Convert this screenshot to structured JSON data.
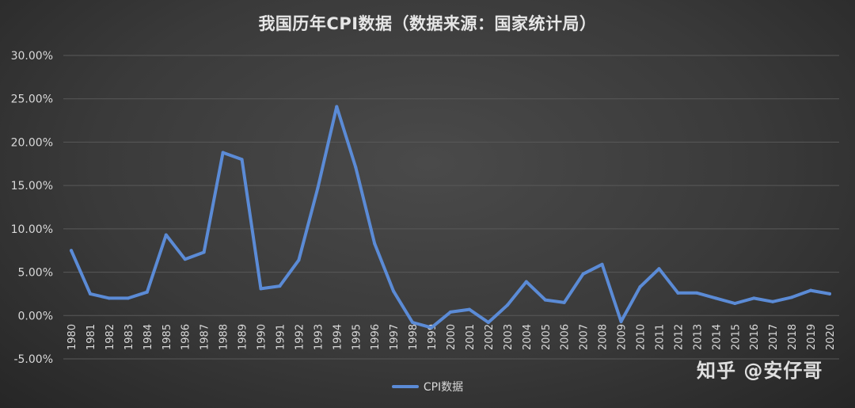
{
  "colors": {
    "line": "#5b8bd6",
    "grid": "#595959",
    "axis_text": "#d9d9d9",
    "title": "#e6e6e6"
  },
  "watermark": "知乎 @安仔哥",
  "chart_data": {
    "type": "line",
    "title": "我国历年CPI数据（数据来源：国家统计局）",
    "xlabel": "",
    "ylabel": "",
    "x": [
      "1980",
      "1981",
      "1982",
      "1983",
      "1984",
      "1985",
      "1986",
      "1987",
      "1988",
      "1989",
      "1990",
      "1991",
      "1992",
      "1993",
      "1994",
      "1995",
      "1996",
      "1997",
      "1998",
      "1999",
      "2000",
      "2001",
      "2002",
      "2003",
      "2004",
      "2005",
      "2006",
      "2007",
      "2008",
      "2009",
      "2010",
      "2011",
      "2012",
      "2013",
      "2014",
      "2015",
      "2016",
      "2017",
      "2018",
      "2019",
      "2020"
    ],
    "series": [
      {
        "name": "CPI数据",
        "values": [
          7.5,
          2.5,
          2.0,
          2.0,
          2.7,
          9.3,
          6.5,
          7.3,
          18.8,
          18.0,
          3.1,
          3.4,
          6.4,
          14.7,
          24.1,
          17.1,
          8.3,
          2.8,
          -0.8,
          -1.4,
          0.4,
          0.7,
          -0.8,
          1.2,
          3.9,
          1.8,
          1.5,
          4.8,
          5.9,
          -0.7,
          3.3,
          5.4,
          2.6,
          2.6,
          2.0,
          1.4,
          2.0,
          1.6,
          2.1,
          2.9,
          2.5
        ]
      }
    ],
    "ylim": [
      -5,
      30
    ],
    "yticks": [
      "-5.00%",
      "0.00%",
      "5.00%",
      "10.00%",
      "15.00%",
      "20.00%",
      "25.00%",
      "30.00%"
    ],
    "grid": true,
    "legend_position": "bottom"
  }
}
